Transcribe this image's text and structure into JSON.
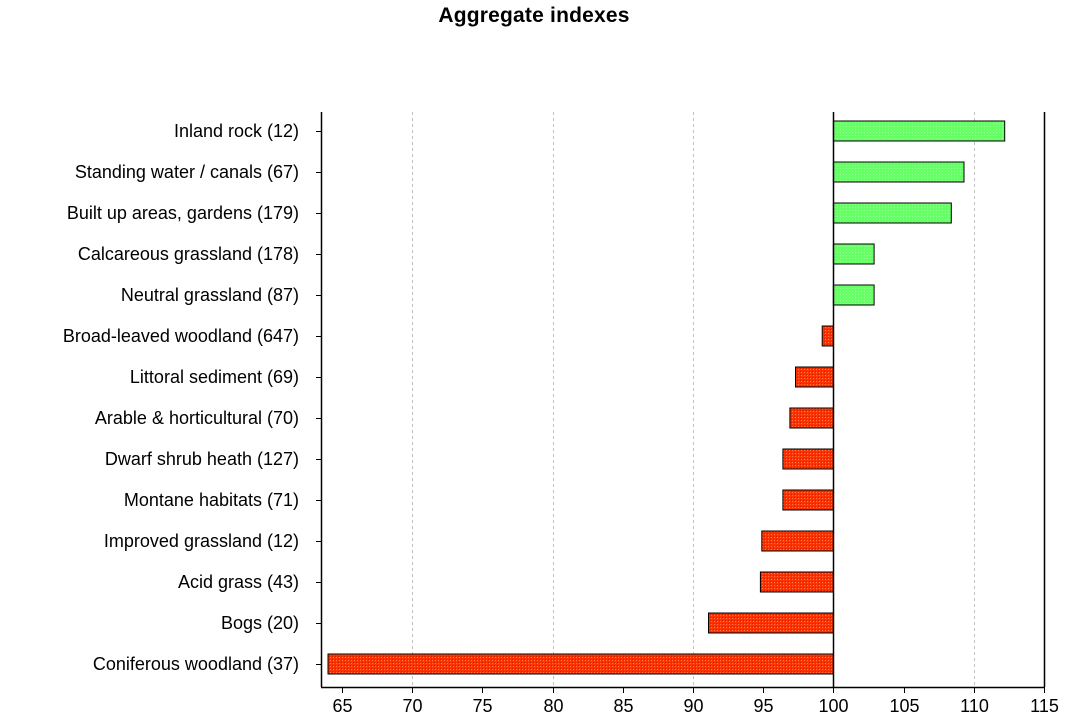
{
  "chart_data": {
    "type": "bar",
    "orientation": "horizontal",
    "title": "Aggregate indexes",
    "xlabel": "",
    "ylabel": "",
    "categories": [
      "Inland rock (12)",
      "Standing water / canals (67)",
      "Built up areas, gardens (179)",
      "Calcareous grassland (178)",
      "Neutral grassland (87)",
      "Broad-leaved woodland (647)",
      "Littoral sediment (69)",
      "Arable & horticultural (70)",
      "Dwarf shrub heath (127)",
      "Montane habitats (71)",
      "Improved grassland (12)",
      "Acid grass (43)",
      "Bogs (20)",
      "Coniferous woodland (37)"
    ],
    "values": [
      112.2,
      109.3,
      108.4,
      102.9,
      102.9,
      99.2,
      97.3,
      96.9,
      96.4,
      96.4,
      94.9,
      94.8,
      91.1,
      64.0
    ],
    "baseline": 100,
    "xlim": [
      63.5,
      115
    ],
    "xticks": [
      65,
      70,
      75,
      80,
      85,
      90,
      95,
      100,
      105,
      110,
      115
    ],
    "gridlines": [
      70,
      80,
      90,
      110
    ],
    "grid": true,
    "legend": "none",
    "colors": {
      "above_baseline": "#66ff66",
      "below_baseline": "#ff3300",
      "bar_outline": "#000000",
      "gridline": "#c0c0c0",
      "axis": "#000000"
    }
  }
}
